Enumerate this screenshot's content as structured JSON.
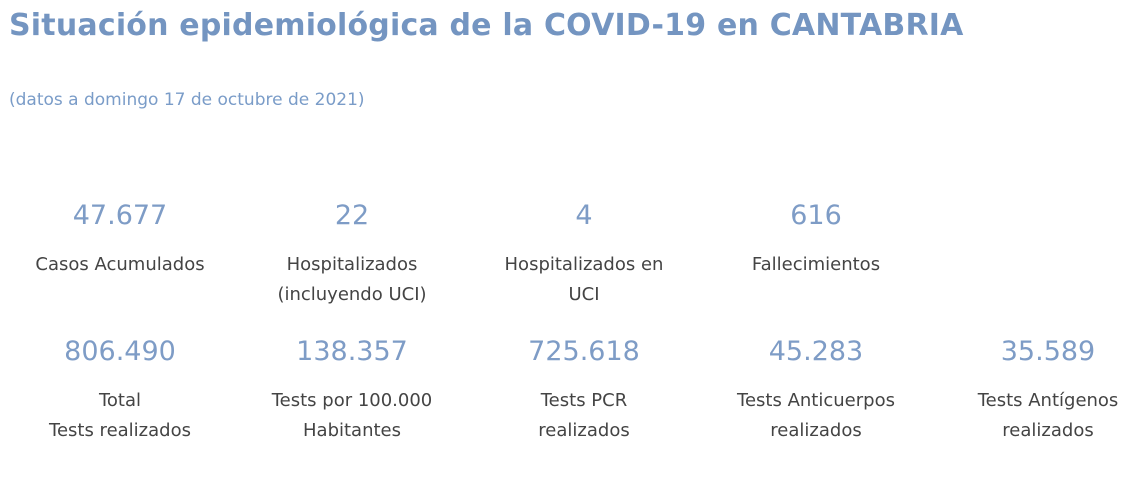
{
  "header": {
    "title": "Situación epidemiológica de la COVID-19 en CANTABRIA",
    "subtitle": "(datos a domingo 17 de octubre de 2021)"
  },
  "stats_row1": [
    {
      "value": "47.677",
      "label": "Casos Acumulados"
    },
    {
      "value": "22",
      "label": "Hospitalizados\n(incluyendo UCI)"
    },
    {
      "value": "4",
      "label": "Hospitalizados en\nUCI"
    },
    {
      "value": "616",
      "label": "Fallecimientos"
    }
  ],
  "stats_row2": [
    {
      "value": "806.490",
      "label": "Total\nTests realizados"
    },
    {
      "value": "138.357",
      "label": "Tests por 100.000\nHabitantes"
    },
    {
      "value": "725.618",
      "label": "Tests PCR\nrealizados"
    },
    {
      "value": "45.283",
      "label": "Tests Anticuerpos\nrealizados"
    },
    {
      "value": "35.589",
      "label": "Tests Antígenos\nrealizados"
    }
  ],
  "colors": {
    "title": "#7495c1",
    "value": "#7e9cc6",
    "label": "#444444"
  }
}
